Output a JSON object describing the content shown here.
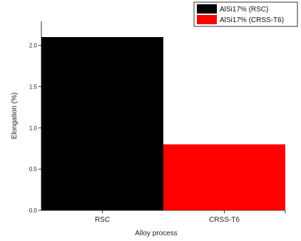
{
  "chart_data": {
    "type": "bar",
    "categories": [
      "RSC",
      "CRSS-T6"
    ],
    "series": [
      {
        "name": "AlSi17% (RSC)",
        "category": "RSC",
        "value": 2.1,
        "color": "#000000"
      },
      {
        "name": "AlSi17% (CRSS-T6)",
        "category": "CRSS-T6",
        "value": 0.8,
        "color": "#ff0000"
      }
    ],
    "xlabel": "Alloy process",
    "ylabel": "Elongation (%)",
    "ylim": [
      0.0,
      2.1
    ],
    "yticks": [
      "0.0",
      "0.5",
      "1.0",
      "1.5",
      "2.0"
    ],
    "grid": false,
    "legend_position": "top-right"
  }
}
